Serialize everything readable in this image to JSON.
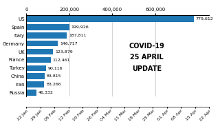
{
  "chart_data": {
    "type": "bar",
    "orientation": "horizontal",
    "categories": [
      "US",
      "Spain",
      "Italy",
      "Germany",
      "UK",
      "France",
      "Turkey",
      "China",
      "Iran",
      "Russia"
    ],
    "values": [
      779612,
      199926,
      187811,
      146717,
      123879,
      112461,
      90116,
      83815,
      83266,
      46332
    ],
    "value_labels": [
      "779,612",
      "199,926",
      "187,811",
      "146,717",
      "123,879",
      "112,461",
      "90,116",
      "83,815",
      "83,266",
      "46,332"
    ],
    "data_labels": true,
    "xlim": [
      0,
      850000
    ],
    "xticks": [
      0,
      {
        "value": 200000,
        "label": "200,000"
      },
      {
        "value": 400000,
        "label": "400,000"
      },
      {
        "value": 600000,
        "label": "600,000"
      }
    ],
    "grid": true,
    "annotations": [
      "COVID-19",
      "25 APRIL",
      "UPDATE"
    ],
    "timeline_labels": [
      "22 Jan",
      "29 Jan",
      "05 Feb",
      "12 Feb",
      "19 Feb",
      "26 Feb",
      "04 Mar",
      "11 Mar",
      "18 Mar",
      "25 Mar",
      "01 Apr",
      "08 Apr",
      "15 Apr",
      "22 Apr"
    ]
  }
}
